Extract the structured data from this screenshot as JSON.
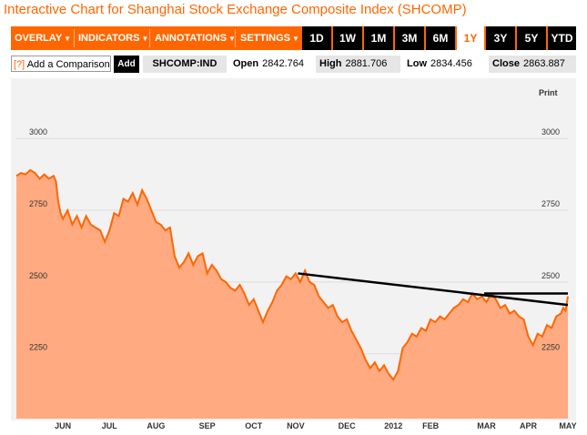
{
  "title": "Interactive Chart for Shanghai Stock Exchange Composite Index (SHCOMP)",
  "menu": [
    {
      "label": "OVERLAY"
    },
    {
      "label": "INDICATORS"
    },
    {
      "label": "ANNOTATIONS"
    },
    {
      "label": "SETTINGS"
    }
  ],
  "ranges": [
    {
      "label": "1D",
      "active": false
    },
    {
      "label": "1W",
      "active": false
    },
    {
      "label": "1M",
      "active": false
    },
    {
      "label": "3M",
      "active": false
    },
    {
      "label": "6M",
      "active": false
    },
    {
      "label": "1Y",
      "active": true
    },
    {
      "label": "3Y",
      "active": false
    },
    {
      "label": "5Y",
      "active": false
    },
    {
      "label": "YTD",
      "active": false
    }
  ],
  "comparison": {
    "help": "[?]",
    "label": "Add a Comparison",
    "button": "Add"
  },
  "ticker": "SHCOMP:IND",
  "quote": {
    "open_label": "Open",
    "open": "2842.764",
    "high_label": "High",
    "high": "2881.706",
    "low_label": "Low",
    "low": "2834.456",
    "close_label": "Close",
    "close": "2863.887"
  },
  "print_label": "Print",
  "colors": {
    "accent": "#ff6600",
    "area_fill": "#ffaa80",
    "area_line": "#ff6600",
    "trendline": "#000000",
    "panel": "#f2f2f2"
  },
  "chart_data": {
    "type": "area",
    "y_ticks": [
      3000,
      2750,
      2500,
      2250
    ],
    "ylim": [
      2024,
      3210
    ],
    "x_month_labels": [
      "JUN",
      "JUL",
      "AUG",
      "SEP",
      "OCT",
      "NOV",
      "DEC",
      "2012",
      "FEB",
      "MAR",
      "APR",
      "MAY"
    ],
    "x_month_positions": [
      1.0,
      2.0,
      3.0,
      4.1,
      5.1,
      6.0,
      7.1,
      8.1,
      8.9,
      10.1,
      11.0,
      11.85
    ],
    "xlim": [
      0,
      11.85
    ],
    "series": [
      {
        "values": [
          [
            0.0,
            2870
          ],
          [
            0.1,
            2880
          ],
          [
            0.2,
            2875
          ],
          [
            0.3,
            2890
          ],
          [
            0.4,
            2880
          ],
          [
            0.5,
            2860
          ],
          [
            0.6,
            2875
          ],
          [
            0.7,
            2860
          ],
          [
            0.8,
            2870
          ],
          [
            0.85,
            2850
          ],
          [
            0.9,
            2780
          ],
          [
            0.95,
            2740
          ],
          [
            1.0,
            2720
          ],
          [
            1.1,
            2750
          ],
          [
            1.2,
            2700
          ],
          [
            1.3,
            2730
          ],
          [
            1.4,
            2690
          ],
          [
            1.5,
            2730
          ],
          [
            1.6,
            2700
          ],
          [
            1.7,
            2690
          ],
          [
            1.8,
            2680
          ],
          [
            1.9,
            2640
          ],
          [
            2.0,
            2680
          ],
          [
            2.1,
            2740
          ],
          [
            2.2,
            2730
          ],
          [
            2.3,
            2790
          ],
          [
            2.4,
            2780
          ],
          [
            2.5,
            2810
          ],
          [
            2.6,
            2770
          ],
          [
            2.7,
            2820
          ],
          [
            2.8,
            2790
          ],
          [
            2.9,
            2750
          ],
          [
            3.0,
            2710
          ],
          [
            3.1,
            2700
          ],
          [
            3.2,
            2680
          ],
          [
            3.3,
            2690
          ],
          [
            3.4,
            2590
          ],
          [
            3.5,
            2550
          ],
          [
            3.6,
            2570
          ],
          [
            3.7,
            2600
          ],
          [
            3.8,
            2560
          ],
          [
            3.9,
            2590
          ],
          [
            4.0,
            2600
          ],
          [
            4.1,
            2530
          ],
          [
            4.2,
            2560
          ],
          [
            4.3,
            2540
          ],
          [
            4.4,
            2510
          ],
          [
            4.5,
            2500
          ],
          [
            4.6,
            2480
          ],
          [
            4.7,
            2470
          ],
          [
            4.8,
            2490
          ],
          [
            4.9,
            2460
          ],
          [
            5.0,
            2420
          ],
          [
            5.1,
            2440
          ],
          [
            5.2,
            2400
          ],
          [
            5.3,
            2360
          ],
          [
            5.4,
            2400
          ],
          [
            5.5,
            2430
          ],
          [
            5.6,
            2470
          ],
          [
            5.7,
            2490
          ],
          [
            5.8,
            2520
          ],
          [
            5.9,
            2510
          ],
          [
            6.0,
            2530
          ],
          [
            6.1,
            2500
          ],
          [
            6.2,
            2540
          ],
          [
            6.3,
            2500
          ],
          [
            6.4,
            2490
          ],
          [
            6.5,
            2450
          ],
          [
            6.6,
            2430
          ],
          [
            6.7,
            2410
          ],
          [
            6.8,
            2420
          ],
          [
            6.9,
            2380
          ],
          [
            7.0,
            2360
          ],
          [
            7.1,
            2370
          ],
          [
            7.2,
            2330
          ],
          [
            7.3,
            2300
          ],
          [
            7.4,
            2270
          ],
          [
            7.5,
            2230
          ],
          [
            7.6,
            2200
          ],
          [
            7.7,
            2220
          ],
          [
            7.8,
            2190
          ],
          [
            7.9,
            2210
          ],
          [
            8.0,
            2180
          ],
          [
            8.1,
            2160
          ],
          [
            8.2,
            2190
          ],
          [
            8.3,
            2270
          ],
          [
            8.4,
            2290
          ],
          [
            8.5,
            2320
          ],
          [
            8.6,
            2310
          ],
          [
            8.7,
            2340
          ],
          [
            8.8,
            2330
          ],
          [
            8.9,
            2370
          ],
          [
            9.0,
            2360
          ],
          [
            9.1,
            2380
          ],
          [
            9.2,
            2370
          ],
          [
            9.3,
            2390
          ],
          [
            9.4,
            2410
          ],
          [
            9.5,
            2420
          ],
          [
            9.6,
            2440
          ],
          [
            9.7,
            2430
          ],
          [
            9.8,
            2460
          ],
          [
            9.9,
            2440
          ],
          [
            10.0,
            2450
          ],
          [
            10.1,
            2430
          ],
          [
            10.2,
            2460
          ],
          [
            10.3,
            2440
          ],
          [
            10.4,
            2410
          ],
          [
            10.5,
            2420
          ],
          [
            10.6,
            2390
          ],
          [
            10.7,
            2400
          ],
          [
            10.8,
            2380
          ],
          [
            10.9,
            2370
          ],
          [
            11.0,
            2310
          ],
          [
            11.1,
            2280
          ],
          [
            11.2,
            2320
          ],
          [
            11.3,
            2310
          ],
          [
            11.4,
            2350
          ],
          [
            11.5,
            2340
          ],
          [
            11.6,
            2380
          ],
          [
            11.7,
            2390
          ],
          [
            11.75,
            2410
          ],
          [
            11.8,
            2400
          ],
          [
            11.85,
            2450
          ]
        ]
      }
    ],
    "annotations": [
      {
        "type": "trendline",
        "points": [
          [
            6.05,
            2530
          ],
          [
            11.85,
            2420
          ]
        ]
      },
      {
        "type": "trendline",
        "points": [
          [
            10.05,
            2460
          ],
          [
            11.85,
            2460
          ]
        ]
      }
    ]
  }
}
